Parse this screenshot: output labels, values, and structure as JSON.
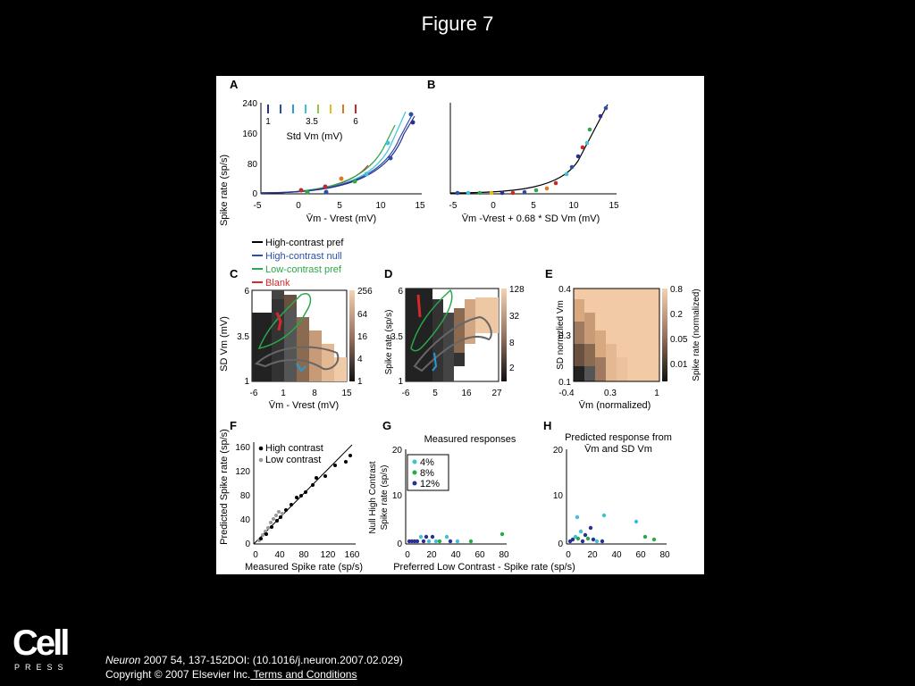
{
  "slide": {
    "title": "Figure 7"
  },
  "logo": {
    "brand": "Cell",
    "sub": "PRESS"
  },
  "citation": {
    "journal": "Neuron",
    "details": " 2007 54, 137-152DOI: (10.1016/j.neuron.2007.02.029)",
    "copyright": "Copyright © 2007 Elsevier Inc.",
    "terms_link": " Terms and Conditions"
  },
  "panels": {
    "A": {
      "letter": "A",
      "ylabel": "Spike rate (sp/s)",
      "yticks": [
        "240",
        "160",
        "80",
        "0"
      ],
      "xticks": [
        "-5",
        "0",
        "5",
        "10",
        "15"
      ],
      "xlabel": "V̄m - Vrest (mV)",
      "legend_ticks": [
        "1",
        "3.5",
        "6"
      ],
      "legend_label": "Std Vm (mV)"
    },
    "B": {
      "letter": "B",
      "xticks": [
        "-5",
        "0",
        "5",
        "10",
        "15"
      ],
      "xlabel": "V̄m -Vrest + 0.68 * SD Vm (mV)"
    },
    "legend": [
      {
        "label": "High-contrast pref",
        "color": "#000000"
      },
      {
        "label": "High-contrast null",
        "color": "#2a4fa8"
      },
      {
        "label": "Low-contrast pref",
        "color": "#2aa84a"
      },
      {
        "label": "Blank",
        "color": "#d42a2a"
      }
    ],
    "C": {
      "letter": "C",
      "ylabel": "SD Vm (mV)",
      "yticks": [
        "6",
        "3.5",
        "1"
      ],
      "xticks": [
        "-6",
        "1",
        "8",
        "15"
      ],
      "xlabel": "V̄m - Vrest (mV)",
      "cbar_ticks": [
        "256",
        "64",
        "16",
        "4",
        "1"
      ]
    },
    "D": {
      "letter": "D",
      "ylabel": "Spike rate (sp/s)",
      "yticks": [
        "6",
        "3.5",
        "1"
      ],
      "xticks": [
        "-6",
        "5",
        "16",
        "27"
      ],
      "cbar_ticks": [
        "128",
        "32",
        "8",
        "2"
      ]
    },
    "E": {
      "letter": "E",
      "ylabel": "SD normzlied Vm",
      "yticks": [
        "0.4",
        "0.3",
        "0.1"
      ],
      "xticks": [
        "-0.4",
        "0.3",
        "1"
      ],
      "xlabel": "V̄m (normalized)",
      "cbar_ticks": [
        "0.8",
        "0.2",
        "0.05",
        "0.01"
      ],
      "cbar_label": "Spike rate (normalized)"
    },
    "F": {
      "letter": "F",
      "ylabel": "Predicted Spike rate (sp/s)",
      "yticks": [
        "160",
        "120",
        "80",
        "40",
        "0"
      ],
      "xticks": [
        "0",
        "40",
        "80",
        "120",
        "160"
      ],
      "xlabel": "Measured Spike rate (sp/s)",
      "legend": [
        "High contrast",
        "Low contrast"
      ]
    },
    "G": {
      "letter": "G",
      "title": "Measured responses",
      "ylabel1": "Null High Contrast",
      "ylabel2": "Spike rate (sp/s)",
      "yticks": [
        "20",
        "10",
        "0"
      ],
      "xticks": [
        "0",
        "20",
        "40",
        "60",
        "80"
      ],
      "legend": [
        "4%",
        "8%",
        "12%"
      ]
    },
    "H": {
      "letter": "H",
      "title1": "Predicted response from",
      "title2": "V̄m and SD Vm",
      "yticks": [
        "20",
        "10",
        "0"
      ],
      "xticks": [
        "0",
        "20",
        "40",
        "60",
        "80"
      ]
    },
    "shared_xlabel": "Preferred Low Contrast - Spike rate (sp/s)"
  }
}
